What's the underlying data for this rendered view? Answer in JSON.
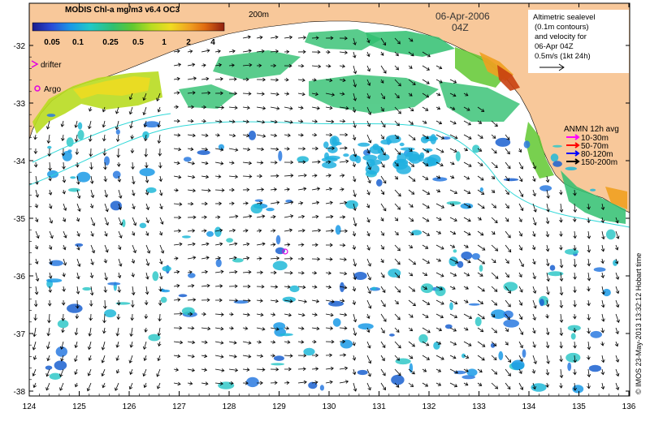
{
  "map": {
    "colorbar_title": "MODIS Chl-a mg/m3 v6.4 OC3",
    "colorbar_ticks": [
      "0.05",
      "0.1",
      "0.25",
      "0.5",
      "1",
      "2",
      "4"
    ],
    "colorbar_colors": [
      "#1a1a8c",
      "#2a4cd8",
      "#1a9ae6",
      "#20c8c8",
      "#30c070",
      "#60c830",
      "#b8dc20",
      "#f0dc20",
      "#f0a020",
      "#e06a10",
      "#c84010",
      "#902010"
    ],
    "isobath_label": "200m",
    "date": "06-Apr-2006",
    "time": "04Z",
    "legend_drifter": "drifter",
    "legend_argo": "Argo",
    "sealevel_legend_lines": [
      "Altimetric sealevel",
      "(0.1m contours)",
      "and velocity for",
      "06-Apr 04Z",
      "0.5m/s (1kt 24h)"
    ],
    "anmn_title": "ANMN 12h avg",
    "anmn_items": [
      {
        "label": "10-30m",
        "color": "#ff00ff"
      },
      {
        "label": "50-70m",
        "color": "#ff0000"
      },
      {
        "label": "80-120m",
        "color": "#0000ff"
      },
      {
        "label": "150-200m",
        "color": "#000000"
      }
    ],
    "lat_ticks": [
      "-32",
      "-33",
      "-34",
      "-35",
      "-36",
      "-37",
      "-38"
    ],
    "lon_ticks": [
      "124",
      "125",
      "126",
      "127",
      "128",
      "129",
      "130",
      "131",
      "132",
      "133",
      "134",
      "135",
      "136"
    ],
    "credit": "© IMOS 23-May-2013 13:32:12 Hobart time",
    "colors": {
      "land": "#f8c89a",
      "contour": "#30d8d8",
      "drifter": "#e000e0",
      "argo": "#e000e0"
    }
  }
}
